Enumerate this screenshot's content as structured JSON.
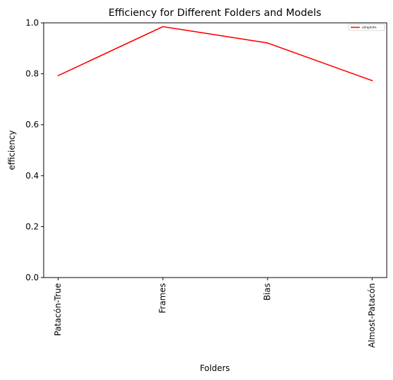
{
  "chart_data": {
    "type": "line",
    "title": "Efficiency for Different Folders and Models",
    "xlabel": "Folders",
    "ylabel": "efficiency",
    "categories": [
      "Patacón-True",
      "Frames",
      "Bias",
      "Almost-Patacón"
    ],
    "series": [
      {
        "name": "ultraptctm",
        "color": "#ff0000",
        "values": [
          0.793,
          0.985,
          0.921,
          0.773
        ]
      }
    ],
    "ylim": [
      0,
      1.0
    ],
    "yticks": [
      "0.0",
      "0.2",
      "0.4",
      "0.6",
      "0.8",
      "1.0"
    ],
    "grid": false,
    "legend_position": "top-right"
  }
}
